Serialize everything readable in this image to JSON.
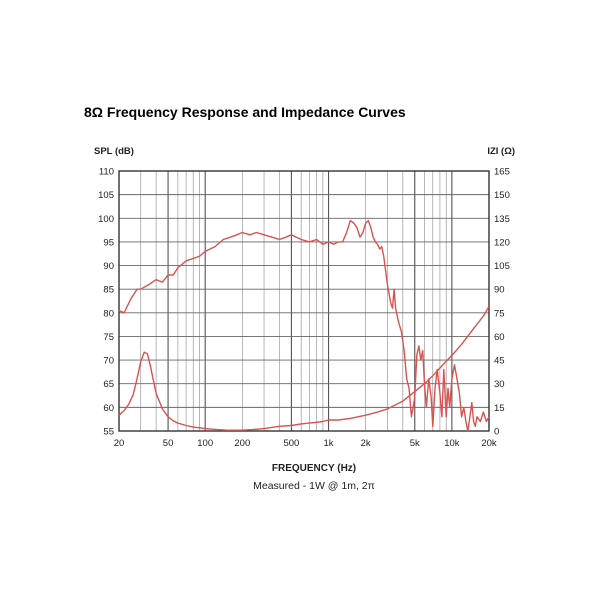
{
  "title": "8Ω Frequency Response and Impedance Curves",
  "chart_data": {
    "type": "line",
    "title": "8Ω Frequency Response and Impedance Curves",
    "ylabel": "SPL (dB)",
    "y2label": "IZI (Ω)",
    "xlabel": "FREQUENCY (Hz)",
    "note": "Measured - 1W @ 1m, 2π",
    "x_scale": "log",
    "xlim": [
      20,
      20000
    ],
    "ylim": [
      55,
      110
    ],
    "y2lim": [
      0,
      165
    ],
    "grid": true,
    "line_color": "#d9534f",
    "x_ticks": [
      {
        "value": 20,
        "label": "20"
      },
      {
        "value": 50,
        "label": "50"
      },
      {
        "value": 100,
        "label": "100"
      },
      {
        "value": 200,
        "label": "200"
      },
      {
        "value": 500,
        "label": "500"
      },
      {
        "value": 1000,
        "label": "1k"
      },
      {
        "value": 2000,
        "label": "2k"
      },
      {
        "value": 5000,
        "label": "5k"
      },
      {
        "value": 10000,
        "label": "10k"
      },
      {
        "value": 20000,
        "label": "20k"
      }
    ],
    "y_ticks": [
      "55",
      "60",
      "65",
      "70",
      "75",
      "80",
      "85",
      "90",
      "95",
      "100",
      "105",
      "110"
    ],
    "y2_ticks": [
      "0",
      "15",
      "30",
      "45",
      "60",
      "75",
      "90",
      "105",
      "120",
      "135",
      "150",
      "165"
    ],
    "series": [
      {
        "axis": "left",
        "x": [
          20,
          22,
          25,
          28,
          30,
          35,
          40,
          45,
          50,
          55,
          60,
          70,
          80,
          90,
          100,
          120,
          140,
          160,
          180,
          200,
          230,
          260,
          300,
          350,
          400,
          450,
          500,
          550,
          600,
          700,
          800,
          900,
          1000,
          1100,
          1200,
          1300,
          1350,
          1400,
          1500,
          1600,
          1700,
          1800,
          1900,
          2000,
          2100,
          2200,
          2300,
          2400,
          2500,
          2600,
          2700,
          2800,
          3000,
          3100,
          3200,
          3300,
          3400,
          3500,
          3700,
          3900,
          4100,
          4300,
          4500,
          4700,
          5000,
          5200,
          5400,
          5600,
          5800,
          6000,
          6200,
          6500,
          6800,
          7000,
          7300,
          7600,
          8000,
          8300,
          8600,
          9000,
          9300,
          9600,
          10000,
          10500,
          11000,
          11500,
          12000,
          12500,
          13000,
          13500,
          14000,
          14500,
          15000,
          15500,
          16000,
          17000,
          18000,
          19000,
          20000
        ],
        "values": [
          80.5,
          80,
          83,
          85,
          85,
          86,
          87,
          86.5,
          88,
          88,
          89.5,
          91,
          91.5,
          92,
          93,
          94,
          95.5,
          96,
          96.5,
          97,
          96.5,
          97,
          96.5,
          96,
          95.5,
          96,
          96.5,
          96,
          95.5,
          95,
          95.5,
          94.5,
          95,
          94.5,
          95,
          95,
          96,
          97,
          99.5,
          99,
          98,
          96,
          97,
          99,
          99.5,
          98,
          96,
          95,
          94.5,
          93.5,
          94,
          92,
          86,
          84,
          82,
          81,
          85,
          81,
          78,
          76,
          72,
          66,
          64,
          58,
          62,
          71,
          73,
          70,
          72,
          65,
          60,
          66,
          62,
          56,
          64,
          68,
          63,
          58,
          68,
          58,
          64,
          60,
          66,
          69,
          66,
          63,
          58,
          60,
          57,
          55,
          58,
          61,
          57,
          56,
          58,
          57,
          59,
          57,
          58
        ]
      },
      {
        "axis": "right",
        "x": [
          20,
          22,
          24,
          26,
          28,
          30,
          32,
          34,
          36,
          38,
          40,
          45,
          50,
          55,
          60,
          70,
          80,
          90,
          100,
          120,
          150,
          200,
          250,
          300,
          400,
          500,
          600,
          700,
          800,
          900,
          1000,
          1200,
          1500,
          2000,
          2500,
          3000,
          4000,
          5000,
          6000,
          7000,
          8000,
          10000,
          12000,
          15000,
          18000,
          20000
        ],
        "values": [
          10,
          13,
          17,
          23,
          33,
          44,
          50,
          49,
          41,
          32,
          24,
          14,
          9,
          6.5,
          5,
          3.5,
          2.5,
          2,
          1.5,
          1,
          0.5,
          0.5,
          1,
          1.5,
          3,
          3.5,
          4.5,
          5,
          5.5,
          6,
          7,
          7,
          8,
          10,
          12,
          14,
          19,
          25,
          30,
          35,
          40,
          48,
          55,
          65,
          73,
          79
        ]
      }
    ]
  }
}
